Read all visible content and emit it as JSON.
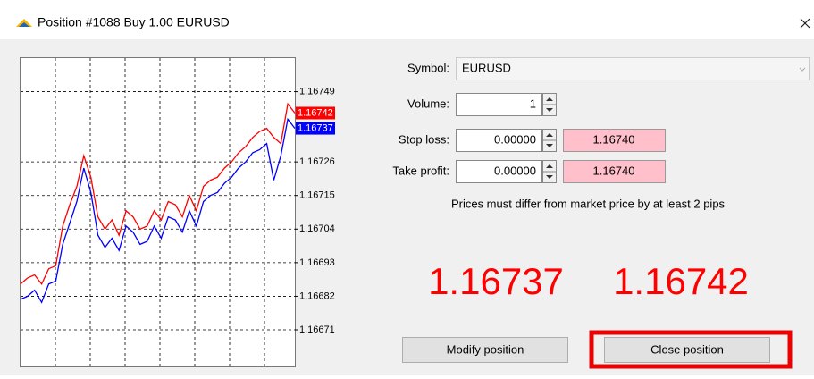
{
  "window": {
    "title": "Position #1088 Buy 1.00 EURUSD"
  },
  "chart_data": {
    "type": "line",
    "series": [
      {
        "name": "Ask",
        "color": "#ff0000",
        "values": [
          1.16686,
          1.16688,
          1.16689,
          1.16686,
          1.16691,
          1.16692,
          1.16705,
          1.16712,
          1.16718,
          1.16728,
          1.16721,
          1.16708,
          1.16704,
          1.16707,
          1.16702,
          1.1671,
          1.16708,
          1.16704,
          1.16705,
          1.1671,
          1.16707,
          1.16713,
          1.16712,
          1.16708,
          1.16715,
          1.1671,
          1.16718,
          1.1672,
          1.16721,
          1.16724,
          1.16726,
          1.16729,
          1.16731,
          1.16734,
          1.16736,
          1.16737,
          1.16734,
          1.16732,
          1.16745,
          1.16742
        ]
      },
      {
        "name": "Bid",
        "color": "#0000ff",
        "values": [
          1.16681,
          1.16682,
          1.16684,
          1.1668,
          1.16686,
          1.16687,
          1.16699,
          1.16706,
          1.16713,
          1.16724,
          1.16716,
          1.16702,
          1.16698,
          1.16701,
          1.16697,
          1.16705,
          1.16703,
          1.16699,
          1.167,
          1.16705,
          1.16701,
          1.16708,
          1.16707,
          1.16703,
          1.1671,
          1.16705,
          1.16713,
          1.16715,
          1.16716,
          1.16719,
          1.16721,
          1.16724,
          1.16726,
          1.16729,
          1.1673,
          1.16732,
          1.1672,
          1.16728,
          1.1674,
          1.16737
        ]
      }
    ],
    "ylim": [
      1.16659,
      1.1676
    ],
    "yticks": [
      1.16749,
      1.16726,
      1.16715,
      1.16704,
      1.16693,
      1.16682,
      1.16671
    ],
    "grid": true
  },
  "form": {
    "symbol_label": "Symbol:",
    "symbol": "EURUSD",
    "volume_label": "Volume:",
    "volume": "1",
    "stop_loss_label": "Stop loss:",
    "stop_loss": "0.00000",
    "stop_loss_price": "1.16740",
    "take_profit_label": "Take profit:",
    "take_profit": "0.00000",
    "take_profit_price": "1.16740",
    "note": "Prices must differ from market price by at least 2 pips"
  },
  "buttons": {
    "modify": "Modify position",
    "close": "Close position"
  }
}
